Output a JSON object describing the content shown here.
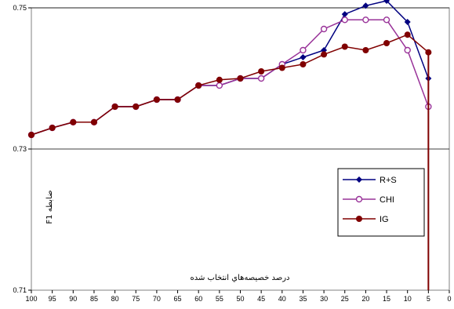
{
  "chart_data": {
    "type": "line",
    "x": [
      100,
      95,
      90,
      85,
      80,
      75,
      70,
      65,
      60,
      55,
      50,
      45,
      40,
      35,
      30,
      25,
      20,
      15,
      10,
      5
    ],
    "x_ticks": [
      "100",
      "95",
      "90",
      "85",
      "80",
      "75",
      "70",
      "65",
      "60",
      "55",
      "50",
      "45",
      "40",
      "35",
      "30",
      "25",
      "20",
      "15",
      "10",
      "5",
      "0"
    ],
    "y_ticks": [
      "0.71",
      "0.73",
      "0.75"
    ],
    "xlim": [
      100,
      0
    ],
    "ylim": [
      0.71,
      0.75
    ],
    "xlabel": "درصد خصيصه‌هاي انتخاب شده",
    "ylabel": "ضابطه F1",
    "grid": "horizontal",
    "legend_position": "right",
    "series": [
      {
        "name": "R+S",
        "color": "#000080",
        "marker": "diamond",
        "values": [
          0.732,
          0.733,
          0.7338,
          0.7338,
          0.736,
          0.736,
          0.737,
          0.737,
          0.739,
          0.739,
          0.74,
          0.74,
          0.742,
          0.743,
          0.744,
          0.7491,
          0.7503,
          0.751,
          0.748,
          0.74
        ]
      },
      {
        "name": "CHI",
        "color": "#993399",
        "marker": "circle-open",
        "values": [
          0.732,
          0.733,
          0.7338,
          0.7338,
          0.736,
          0.736,
          0.737,
          0.737,
          0.739,
          0.739,
          0.74,
          0.74,
          0.742,
          0.744,
          0.747,
          0.7483,
          0.7483,
          0.7483,
          0.744,
          0.736
        ]
      },
      {
        "name": "IG",
        "color": "#800000",
        "marker": "circle-filled",
        "values": [
          0.732,
          0.733,
          0.7338,
          0.7338,
          0.736,
          0.736,
          0.737,
          0.737,
          0.739,
          0.7398,
          0.74,
          0.741,
          0.7415,
          0.742,
          0.7434,
          0.7445,
          0.744,
          0.745,
          0.7462,
          0.7437
        ],
        "drop_to_axis": true
      }
    ]
  }
}
